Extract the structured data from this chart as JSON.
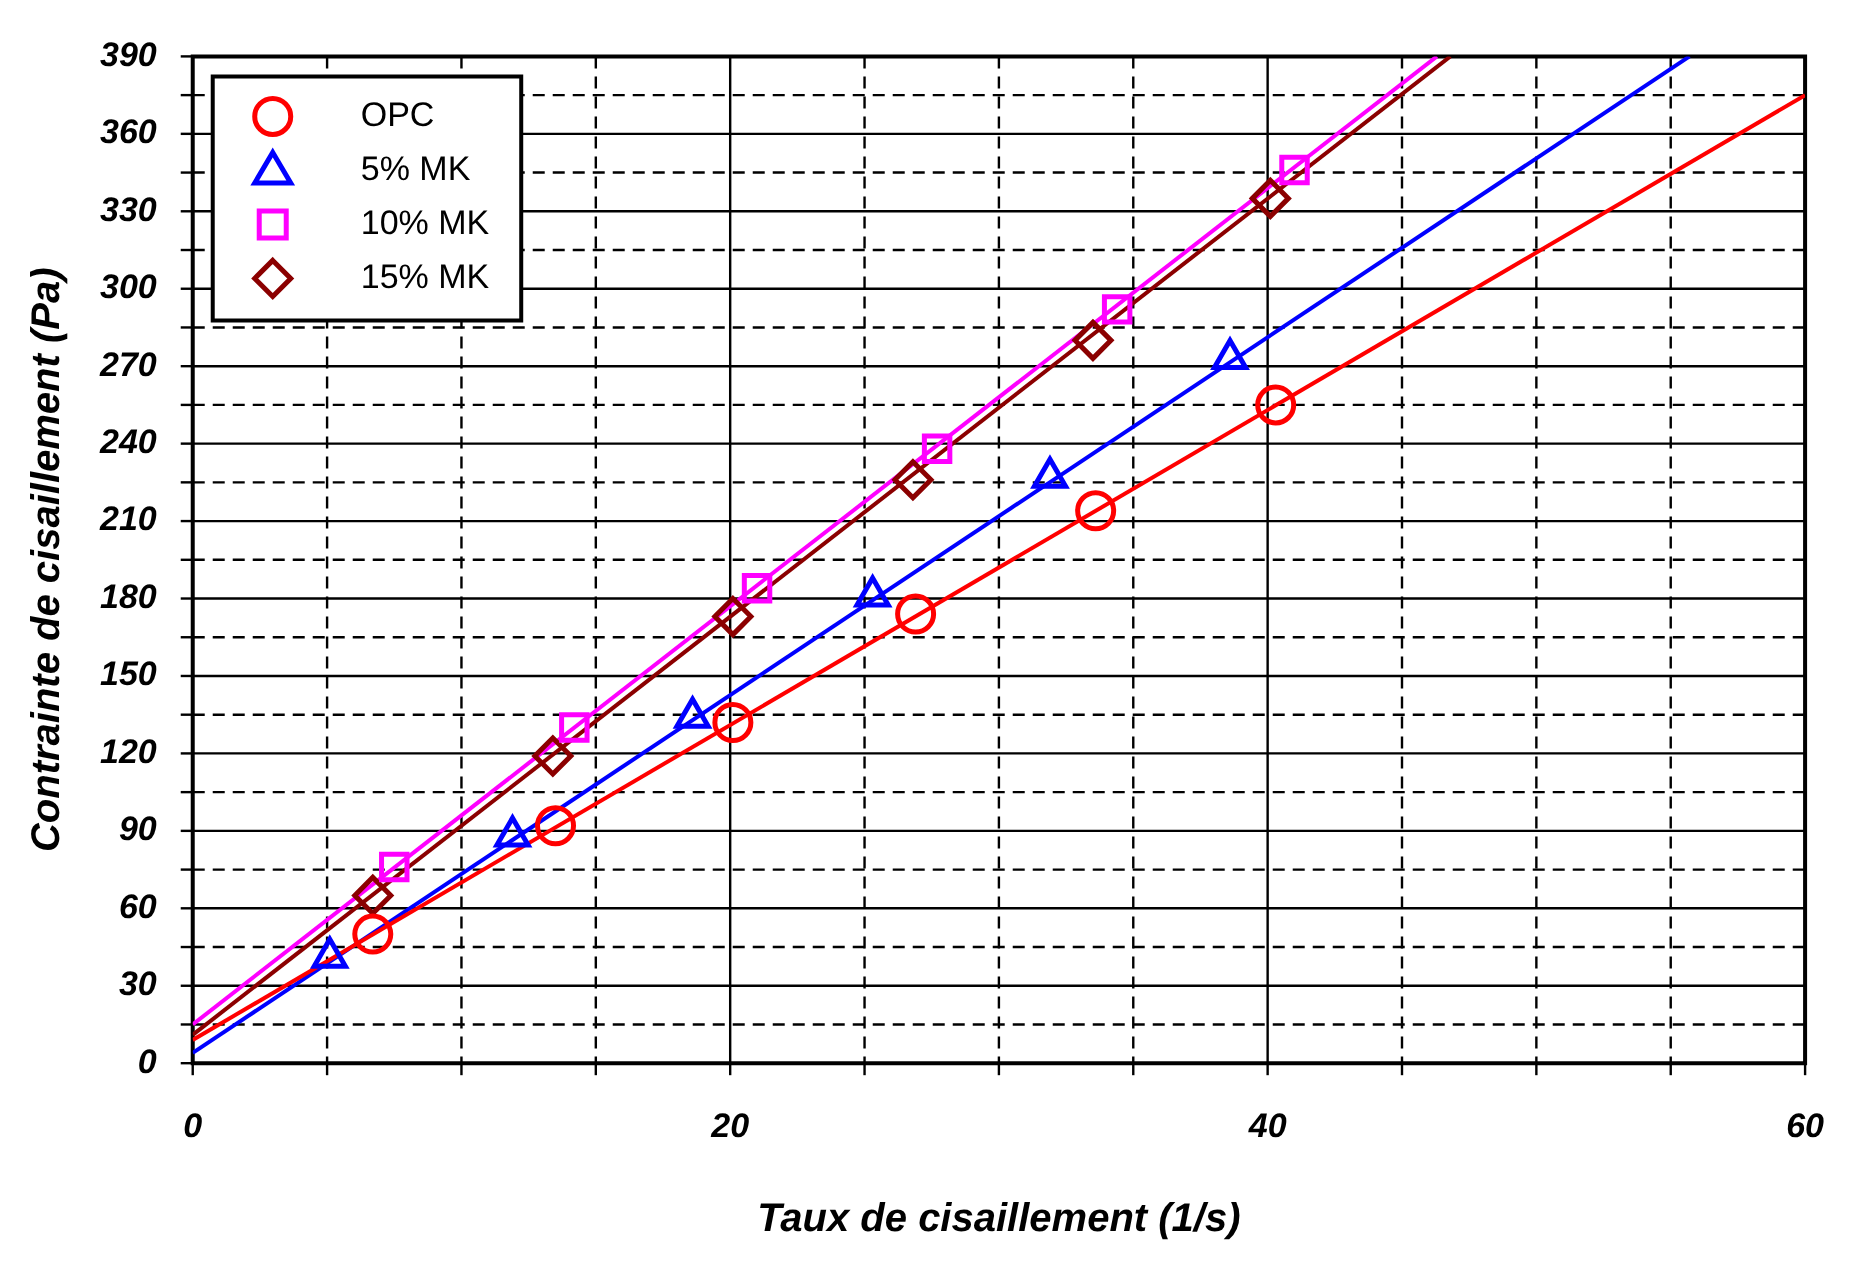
{
  "chart_data": {
    "type": "scatter",
    "xlabel": "Taux de cisaillement (1/s)",
    "ylabel": "Contrainte de cisaillement (Pa)",
    "xlim": [
      0,
      60
    ],
    "ylim": [
      0,
      390
    ],
    "xticks": [
      0,
      {
        "value": 5,
        "label": null
      },
      {
        "value": 10,
        "label": null
      },
      {
        "value": 15,
        "label": null
      },
      20,
      {
        "value": 25,
        "label": null
      },
      {
        "value": 30,
        "label": null
      },
      {
        "value": 35,
        "label": null
      },
      40,
      {
        "value": 45,
        "label": null
      },
      {
        "value": 50,
        "label": null
      },
      {
        "value": 55,
        "label": null
      },
      60
    ],
    "yticks": [
      0,
      {
        "value": 15,
        "label": null
      },
      30,
      {
        "value": 45,
        "label": null
      },
      60,
      {
        "value": 75,
        "label": null
      },
      90,
      {
        "value": 105,
        "label": null
      },
      120,
      {
        "value": 135,
        "label": null
      },
      150,
      {
        "value": 165,
        "label": null
      },
      180,
      {
        "value": 195,
        "label": null
      },
      210,
      {
        "value": 225,
        "label": null
      },
      240,
      {
        "value": 255,
        "label": null
      },
      270,
      {
        "value": 285,
        "label": null
      },
      300,
      {
        "value": 315,
        "label": null
      },
      330,
      {
        "value": 345,
        "label": null
      },
      360,
      {
        "value": 375,
        "label": null
      },
      390
    ],
    "grid": true,
    "legend": "top left",
    "series": [
      {
        "name": "OPC",
        "marker": "circle",
        "color": "#ff0000",
        "x": [
          6.7,
          13.5,
          20.1,
          26.9,
          33.6,
          40.3
        ],
        "values": [
          50,
          92,
          132,
          174,
          214,
          255
        ]
      },
      {
        "name": "5% MK",
        "marker": "triangle",
        "color": "#0000ff",
        "x": [
          5.1,
          11.9,
          18.6,
          25.3,
          31.9,
          38.6
        ],
        "values": [
          41,
          88,
          134,
          181,
          227,
          273
        ]
      },
      {
        "name": "10% MK",
        "marker": "square",
        "color": "#ff00ff",
        "x": [
          7.5,
          14.2,
          21,
          27.7,
          34.4,
          41
        ],
        "values": [
          76,
          130,
          184,
          238,
          292,
          346
        ]
      },
      {
        "name": "15% MK",
        "marker": "diamond",
        "color": "#8b0000",
        "x": [
          6.7,
          13.4,
          20.1,
          26.8,
          33.5,
          40.1
        ],
        "values": [
          65,
          119,
          173,
          226,
          280,
          335
        ]
      },
      {
        "type": "line",
        "marker": "none",
        "color": "#ff0000",
        "x": [
          0,
          60
        ],
        "values": [
          9,
          375
        ]
      },
      {
        "type": "line",
        "marker": "none",
        "color": "#0000ff",
        "x": [
          0,
          55.7
        ],
        "values": [
          4,
          390
        ]
      },
      {
        "type": "line",
        "marker": "none",
        "color": "#ff00ff",
        "x": [
          0,
          46.3
        ],
        "values": [
          15,
          390
        ]
      },
      {
        "type": "line",
        "marker": "none",
        "color": "#8b0000",
        "x": [
          0,
          46.8
        ],
        "values": [
          11,
          390
        ]
      }
    ]
  }
}
